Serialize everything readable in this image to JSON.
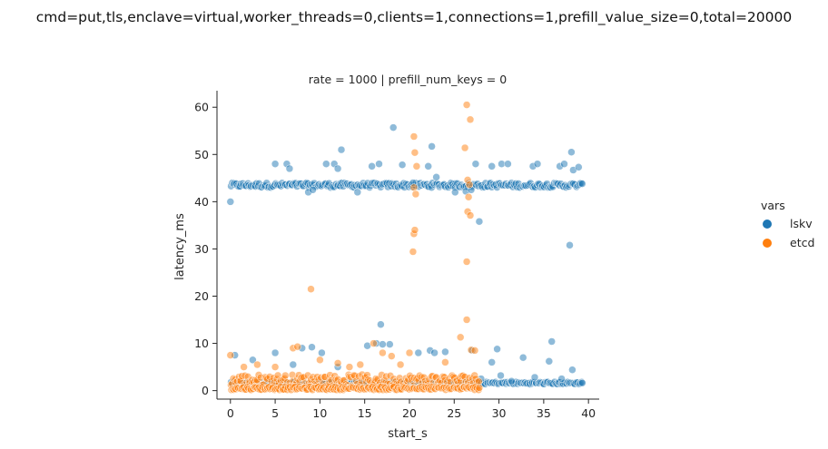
{
  "chart_data": {
    "type": "scatter",
    "title": "cmd=put,tls,enclave=virtual,worker_threads=0,clients=1,connections=1,prefill_value_size=0,total=20000",
    "subtitle": "rate = 1000 | prefill_num_keys = 0",
    "xlabel": "start_s",
    "ylabel": "latency_ms",
    "xlim": [
      -1.5,
      41.2
    ],
    "ylim": [
      -1.8,
      63.5
    ],
    "xticks": [
      0,
      5,
      10,
      15,
      20,
      25,
      30,
      35,
      40
    ],
    "yticks": [
      0,
      10,
      20,
      30,
      40,
      50,
      60
    ],
    "grid": false,
    "legend": {
      "title": "vars",
      "placement": "right"
    },
    "series": [
      {
        "name": "lskv",
        "color": "#1f77b4",
        "bands": [
          {
            "x_range": [
              0,
              39.3
            ],
            "y_center": 43.5,
            "y_spread": 0.5
          },
          {
            "x_range": [
              0,
              39.3
            ],
            "y_center": 1.6,
            "y_spread": 0.25
          }
        ],
        "points": [
          [
            0.0,
            40.0
          ],
          [
            5.0,
            48.0
          ],
          [
            6.3,
            48.0
          ],
          [
            6.6,
            47.0
          ],
          [
            8.7,
            42.0
          ],
          [
            9.2,
            42.5
          ],
          [
            10.7,
            48.0
          ],
          [
            11.6,
            48.0
          ],
          [
            12.0,
            47.0
          ],
          [
            12.4,
            51.0
          ],
          [
            14.2,
            42.0
          ],
          [
            15.8,
            47.5
          ],
          [
            16.6,
            48.0
          ],
          [
            18.2,
            55.7
          ],
          [
            19.2,
            47.8
          ],
          [
            20.4,
            44.0
          ],
          [
            22.1,
            47.5
          ],
          [
            22.5,
            51.7
          ],
          [
            23.0,
            45.2
          ],
          [
            25.1,
            42.0
          ],
          [
            26.3,
            42.2
          ],
          [
            26.9,
            42.5
          ],
          [
            27.4,
            48.0
          ],
          [
            27.8,
            35.8
          ],
          [
            29.2,
            47.5
          ],
          [
            30.3,
            48.0
          ],
          [
            31.0,
            48.0
          ],
          [
            33.8,
            47.5
          ],
          [
            34.3,
            48.0
          ],
          [
            36.8,
            47.5
          ],
          [
            37.3,
            48.0
          ],
          [
            37.9,
            30.8
          ],
          [
            38.1,
            50.5
          ],
          [
            38.3,
            46.7
          ],
          [
            38.9,
            47.3
          ],
          [
            39.3,
            43.8
          ],
          [
            0.5,
            7.5
          ],
          [
            2.5,
            6.5
          ],
          [
            5.0,
            8.0
          ],
          [
            7.0,
            5.5
          ],
          [
            8.0,
            9.0
          ],
          [
            9.1,
            9.2
          ],
          [
            10.2,
            8.0
          ],
          [
            12.0,
            5.0
          ],
          [
            15.3,
            9.5
          ],
          [
            16.3,
            10.0
          ],
          [
            16.8,
            14.0
          ],
          [
            17.0,
            9.8
          ],
          [
            17.8,
            9.8
          ],
          [
            21.0,
            8.0
          ],
          [
            22.3,
            8.5
          ],
          [
            22.8,
            8.0
          ],
          [
            24.0,
            8.2
          ],
          [
            27.0,
            8.5
          ],
          [
            28.0,
            2.5
          ],
          [
            29.2,
            6.0
          ],
          [
            29.8,
            8.8
          ],
          [
            30.2,
            3.2
          ],
          [
            31.4,
            2.0
          ],
          [
            32.7,
            7.0
          ],
          [
            34.0,
            2.8
          ],
          [
            35.6,
            6.2
          ],
          [
            35.9,
            10.4
          ],
          [
            37.0,
            2.5
          ],
          [
            38.2,
            4.4
          ],
          [
            39.3,
            1.6
          ]
        ]
      },
      {
        "name": "etcd",
        "color": "#ff7f0e",
        "bands": [
          {
            "x_range": [
              0,
              27.8
            ],
            "y_center": 2.2,
            "y_spread": 1.2
          },
          {
            "x_range": [
              0,
              27.8
            ],
            "y_center": 0.5,
            "y_spread": 0.35
          }
        ],
        "points": [
          [
            0.0,
            7.5
          ],
          [
            1.5,
            5.0
          ],
          [
            3.0,
            5.5
          ],
          [
            5.0,
            5.0
          ],
          [
            7.0,
            9.0
          ],
          [
            7.5,
            9.3
          ],
          [
            9.0,
            21.5
          ],
          [
            10.0,
            6.5
          ],
          [
            12.0,
            5.8
          ],
          [
            13.3,
            5.0
          ],
          [
            14.5,
            5.5
          ],
          [
            16.0,
            10.0
          ],
          [
            17.0,
            8.0
          ],
          [
            18.0,
            7.3
          ],
          [
            19.0,
            5.5
          ],
          [
            20.0,
            8.0
          ],
          [
            20.4,
            29.4
          ],
          [
            20.5,
            33.2
          ],
          [
            20.6,
            34.0
          ],
          [
            20.5,
            43.0
          ],
          [
            20.7,
            41.6
          ],
          [
            20.8,
            47.5
          ],
          [
            20.6,
            50.4
          ],
          [
            20.5,
            53.8
          ],
          [
            24.0,
            6.0
          ],
          [
            25.7,
            11.3
          ],
          [
            26.2,
            51.4
          ],
          [
            26.4,
            60.5
          ],
          [
            26.5,
            44.6
          ],
          [
            26.7,
            43.6
          ],
          [
            26.6,
            41.0
          ],
          [
            26.5,
            37.9
          ],
          [
            26.8,
            37.1
          ],
          [
            26.4,
            27.3
          ],
          [
            26.4,
            15.0
          ],
          [
            26.8,
            57.4
          ],
          [
            26.9,
            8.6
          ],
          [
            27.3,
            8.5
          ],
          [
            27.8,
            0.6
          ]
        ]
      }
    ]
  }
}
